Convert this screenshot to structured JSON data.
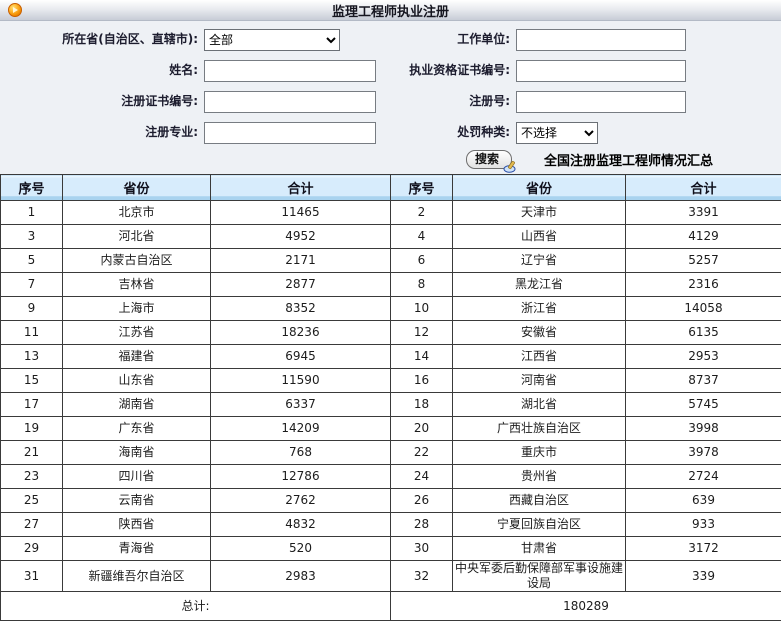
{
  "header": {
    "title": "监理工程师执业注册"
  },
  "form": {
    "province_label": "所在省(自治区、直辖市):",
    "province_value": "全部",
    "name_label": "姓名:",
    "reg_cert_label": "注册证书编号:",
    "reg_major_label": "注册专业:",
    "work_unit_label": "工作单位:",
    "qual_cert_label": "执业资格证书编号:",
    "reg_no_label": "注册号:",
    "penalty_label": "处罚种类:",
    "penalty_value": "不选择",
    "search_label": "搜索",
    "summary_title": "全国注册监理工程师情况汇总"
  },
  "table": {
    "headers": [
      "序号",
      "省份",
      "合计",
      "序号",
      "省份",
      "合计"
    ],
    "rows": [
      [
        "1",
        "北京市",
        "11465",
        "2",
        "天津市",
        "3391"
      ],
      [
        "3",
        "河北省",
        "4952",
        "4",
        "山西省",
        "4129"
      ],
      [
        "5",
        "内蒙古自治区",
        "2171",
        "6",
        "辽宁省",
        "5257"
      ],
      [
        "7",
        "吉林省",
        "2877",
        "8",
        "黑龙江省",
        "2316"
      ],
      [
        "9",
        "上海市",
        "8352",
        "10",
        "浙江省",
        "14058"
      ],
      [
        "11",
        "江苏省",
        "18236",
        "12",
        "安徽省",
        "6135"
      ],
      [
        "13",
        "福建省",
        "6945",
        "14",
        "江西省",
        "2953"
      ],
      [
        "15",
        "山东省",
        "11590",
        "16",
        "河南省",
        "8737"
      ],
      [
        "17",
        "湖南省",
        "6337",
        "18",
        "湖北省",
        "5745"
      ],
      [
        "19",
        "广东省",
        "14209",
        "20",
        "广西壮族自治区",
        "3998"
      ],
      [
        "21",
        "海南省",
        "768",
        "22",
        "重庆市",
        "3978"
      ],
      [
        "23",
        "四川省",
        "12786",
        "24",
        "贵州省",
        "2724"
      ],
      [
        "25",
        "云南省",
        "2762",
        "26",
        "西藏自治区",
        "639"
      ],
      [
        "27",
        "陕西省",
        "4832",
        "28",
        "宁夏回族自治区",
        "933"
      ],
      [
        "29",
        "青海省",
        "520",
        "30",
        "甘肃省",
        "3172"
      ],
      [
        "31",
        "新疆维吾尔自治区",
        "2983",
        "32",
        "中央军委后勤保障部军事设施建设局",
        "339"
      ]
    ],
    "total_label": "总计:",
    "total_value": "180289"
  },
  "colors": {
    "titlebar_gradient_bottom": "#c7ccd6",
    "form_background": "#eef1f5",
    "table_header_background": "#d7ecfc",
    "table_header_strip": "#a9d3ef",
    "table_border": "#3a3a3a",
    "orb_orange": "#f08a00"
  }
}
